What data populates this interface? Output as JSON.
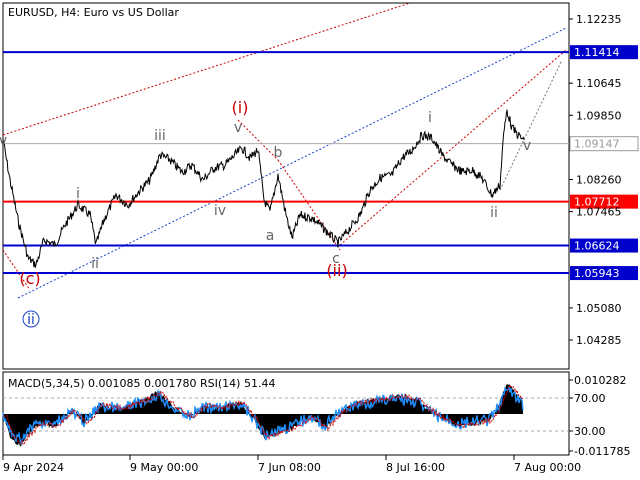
{
  "window": {
    "title": "EURUSD, H4:  Euro vs US Dollar"
  },
  "main_chart": {
    "price_ticks": [
      {
        "value": 1.12235,
        "label": "1.12235"
      },
      {
        "value": 1.10645,
        "label": "1.10645"
      },
      {
        "value": 1.0985,
        "label": "1.09850"
      },
      {
        "value": 1.0826,
        "label": "1.08260"
      },
      {
        "value": 1.07465,
        "label": "1.07465"
      },
      {
        "value": 1.0508,
        "label": "1.05080"
      },
      {
        "value": 1.04285,
        "label": "1.04285"
      }
    ],
    "levels": [
      {
        "value": 1.11414,
        "label": "1.11414",
        "color": "#0000cc"
      },
      {
        "value": 1.07712,
        "label": "1.07712",
        "color": "#ff0000"
      },
      {
        "value": 1.06624,
        "label": "1.06624",
        "color": "#0000cc"
      },
      {
        "value": 1.05943,
        "label": "1.05943",
        "color": "#0000cc"
      }
    ],
    "current_price": {
      "value": 1.09147,
      "label": "1.09147"
    },
    "wave_labels": [
      {
        "text": "v",
        "color": "#666666"
      },
      {
        "text": "(c)",
        "color": "#cc0000"
      },
      {
        "text": "ii",
        "color": "#1a3fcc",
        "circled": true
      },
      {
        "text": "i",
        "color": "#666666"
      },
      {
        "text": "ii",
        "color": "#666666"
      },
      {
        "text": "iii",
        "color": "#666666"
      },
      {
        "text": "iv",
        "color": "#666666"
      },
      {
        "text": "(i)",
        "color": "#cc0000"
      },
      {
        "text": "v",
        "color": "#666666"
      },
      {
        "text": "b",
        "color": "#666666"
      },
      {
        "text": "a",
        "color": "#666666"
      },
      {
        "text": "c",
        "color": "#666666"
      },
      {
        "text": "(ii)",
        "color": "#cc0000"
      },
      {
        "text": "i",
        "color": "#666666"
      },
      {
        "text": "ii",
        "color": "#666666"
      },
      {
        "text": "v",
        "color": "#666666"
      }
    ]
  },
  "indicator": {
    "title": "MACD(5,34,5) 0.001085 0.001780 RSI(14) 51.44",
    "ticks": [
      {
        "label": "0.010282"
      },
      {
        "label": "70.00"
      },
      {
        "label": "30.00"
      },
      {
        "label": "-0.011785"
      }
    ]
  },
  "time_axis": [
    {
      "label": "9 Apr 2024"
    },
    {
      "label": "9 May 00:00"
    },
    {
      "label": "7 Jun 08:00"
    },
    {
      "label": "8 Jul 16:00"
    },
    {
      "label": "7 Aug 00:00"
    }
  ],
  "colors": {
    "price_line": "#000000",
    "rsi_line": "#1e90ff",
    "signal_line": "#cc0000",
    "channel_blue": "#1a3fcc",
    "channel_red": "#cc0000",
    "current_price_line": "#aaaaaa"
  }
}
